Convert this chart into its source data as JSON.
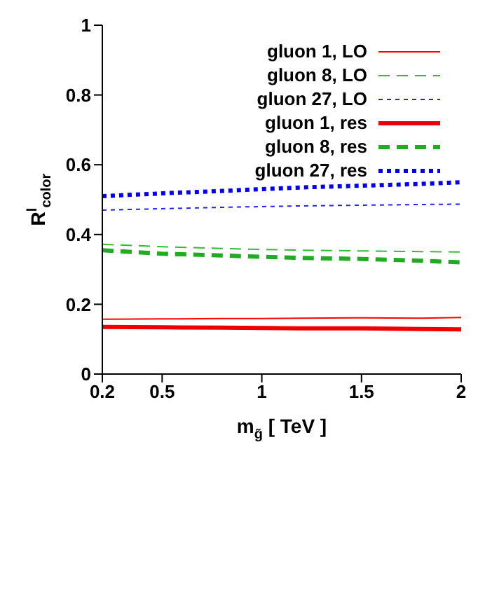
{
  "chart_data": {
    "type": "line",
    "xlabel": "m$_{g̃}$  [ TeV ]",
    "ylabel": "R$^{l}$$_{color}$",
    "x": [
      0.2,
      0.5,
      0.8,
      1,
      1.2,
      1.5,
      1.8,
      2
    ],
    "series": [
      {
        "name": "gluon 1, LO",
        "color": "#ff0000",
        "line_style": "solid",
        "values": [
          0.157,
          0.158,
          0.159,
          0.159,
          0.16,
          0.161,
          0.16,
          0.162
        ]
      },
      {
        "name": "gluon 8, LO",
        "color": "#33bb33",
        "line_style": "dashed",
        "values": [
          0.372,
          0.365,
          0.36,
          0.357,
          0.355,
          0.353,
          0.351,
          0.35
        ]
      },
      {
        "name": "gluon 27, LO",
        "color": "#2222ee",
        "line_style": "dotted",
        "values": [
          0.47,
          0.474,
          0.478,
          0.48,
          0.482,
          0.484,
          0.486,
          0.487
        ]
      },
      {
        "name": "gluon 1, res",
        "color": "#ee0000",
        "line_style": "solid",
        "values": [
          0.135,
          0.134,
          0.133,
          0.132,
          0.131,
          0.131,
          0.129,
          0.128
        ]
      },
      {
        "name": "gluon 8, res",
        "color": "#22aa22",
        "line_style": "dashed",
        "values": [
          0.355,
          0.345,
          0.34,
          0.336,
          0.333,
          0.33,
          0.325,
          0.32
        ]
      },
      {
        "name": "gluon 27, res",
        "color": "#0000ee",
        "line_style": "dotted",
        "values": [
          0.51,
          0.518,
          0.525,
          0.53,
          0.535,
          0.54,
          0.545,
          0.55
        ]
      }
    ],
    "xlim": [
      0.2,
      2
    ],
    "xticks": [
      0.2,
      0.5,
      1,
      1.5,
      2
    ],
    "ylim": [
      0,
      1
    ],
    "yticks": [
      0,
      0.2,
      0.4,
      0.6,
      0.8,
      1
    ],
    "grid": false,
    "legend": "top right",
    "marker": "none"
  }
}
